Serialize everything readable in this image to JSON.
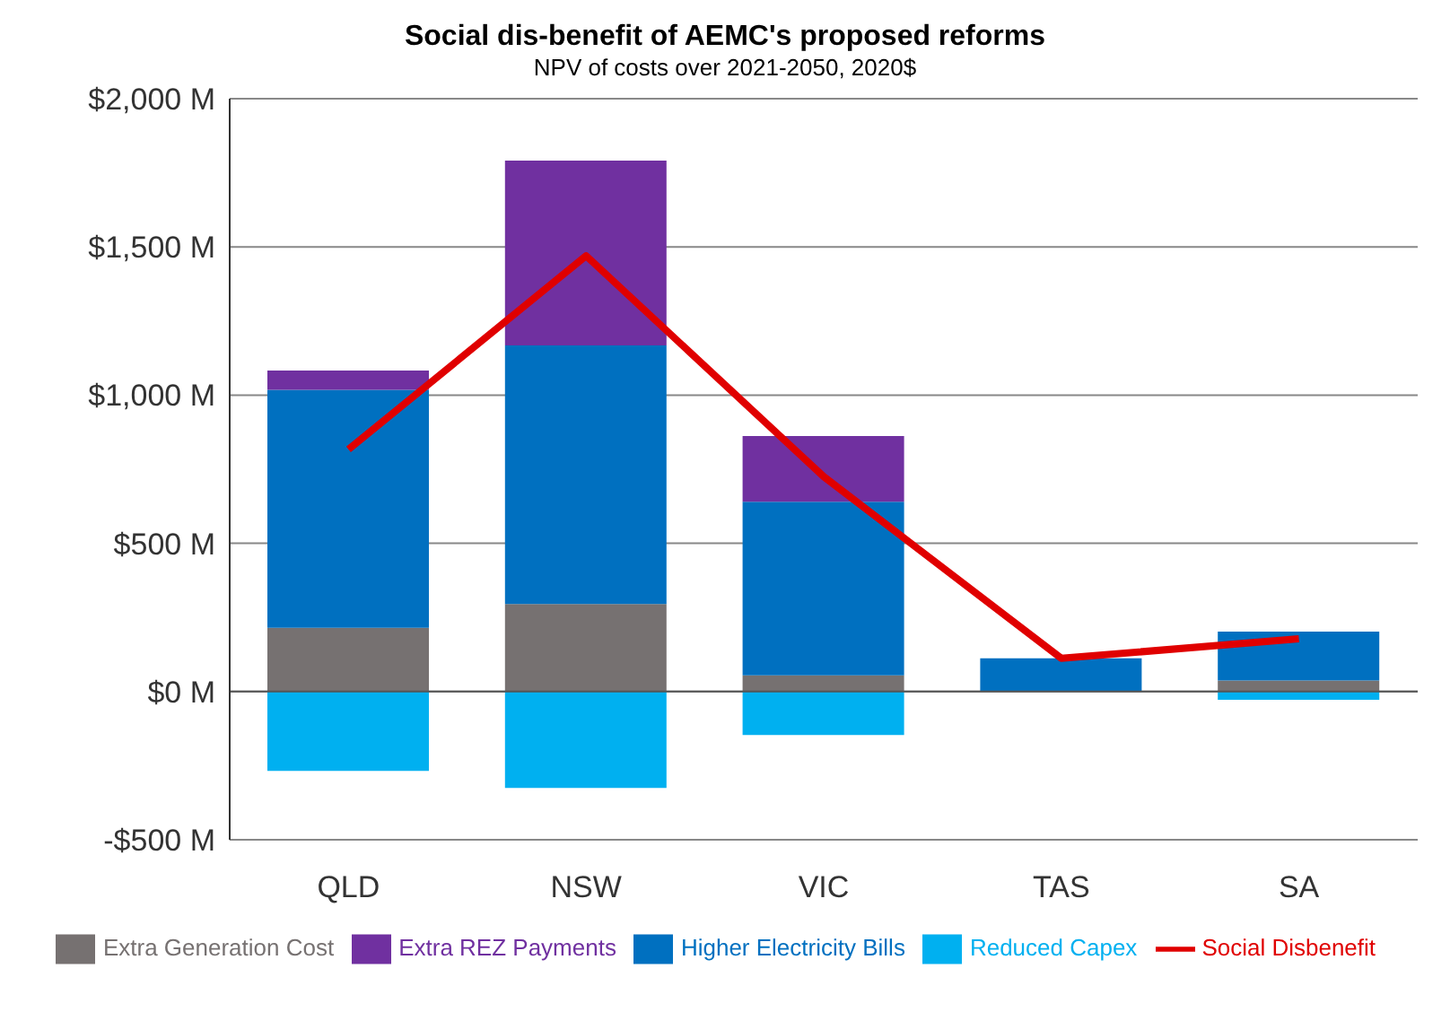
{
  "chart_data": {
    "type": "bar",
    "stacked": true,
    "title": "Social dis-benefit of AEMC's proposed reforms",
    "subtitle": "NPV of costs over 2021-2050, 2020$",
    "categories": [
      "QLD",
      "NSW",
      "VIC",
      "TAS",
      "SA"
    ],
    "series": [
      {
        "name": "Extra Generation Cost",
        "color": "#767171",
        "values": [
          215,
          295,
          55,
          0,
          37
        ]
      },
      {
        "name": "Reduced Capex",
        "color": "#00b0f0",
        "values": [
          -268,
          -325,
          -147,
          0,
          -28
        ]
      },
      {
        "name": "Higher Electricity Bills",
        "color": "#0070c0",
        "values": [
          803,
          873,
          585,
          112,
          165
        ]
      },
      {
        "name": "Extra REZ Payments",
        "color": "#7030a0",
        "values": [
          65,
          623,
          222,
          0,
          0
        ]
      },
      {
        "name": "Social Disbenefit",
        "type": "line",
        "color": "#e00000",
        "values": [
          817,
          1470,
          725,
          112,
          178
        ]
      }
    ],
    "ylim": [
      -500,
      2000
    ],
    "yticks": [
      {
        "value": -500,
        "label": "-$500 M"
      },
      {
        "value": 0,
        "label": "$0 M"
      },
      {
        "value": 500,
        "label": "$500 M"
      },
      {
        "value": 1000,
        "label": "$1,000 M"
      },
      {
        "value": 1500,
        "label": "$1,500 M"
      },
      {
        "value": 2000,
        "label": "$2,000 M"
      }
    ],
    "grid": "y",
    "legend": "bottom",
    "marker": "none"
  }
}
